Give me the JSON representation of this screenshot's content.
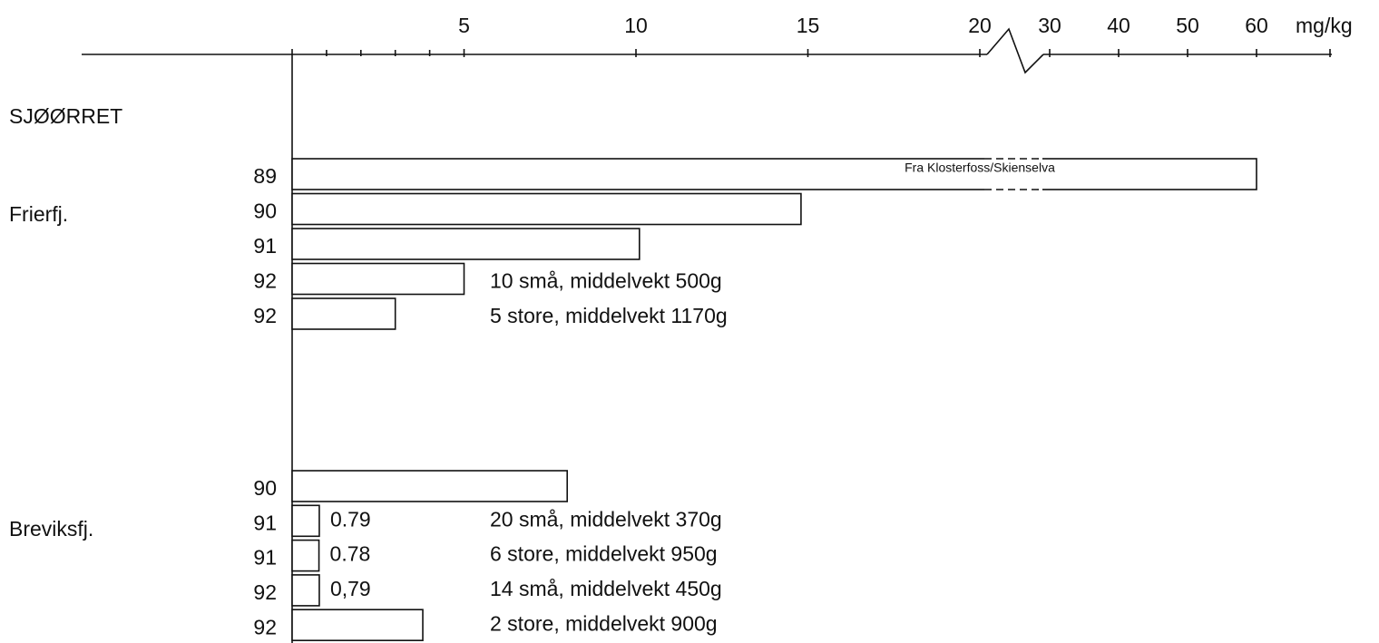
{
  "chart_data": {
    "type": "bar",
    "orientation": "horizontal",
    "title": "SJØØRRET",
    "unit": "mg/kg",
    "xlim": [
      0,
      60
    ],
    "xbreak": [
      20,
      30
    ],
    "xticks": [
      5,
      10,
      15,
      20,
      30,
      40,
      50,
      60
    ],
    "xminor_ticks": [
      1,
      2,
      3,
      4
    ],
    "color": "#ffffff",
    "groups": [
      {
        "name": "Frierfj.",
        "categories": [
          "89",
          "90",
          "91",
          "92",
          "92"
        ],
        "values": [
          60,
          14.8,
          10.1,
          5.0,
          3.0
        ],
        "value_labels": [
          null,
          null,
          null,
          null,
          null
        ],
        "notes": [
          "Fra Klosterfoss/Skienselva",
          null,
          null,
          "10 små, middelvekt 500g",
          "5 store, middelvekt 1170g"
        ]
      },
      {
        "name": "Breviksfj.",
        "categories": [
          "90",
          "91",
          "91",
          "92",
          "92"
        ],
        "values": [
          8.0,
          0.79,
          0.78,
          0.79,
          3.8
        ],
        "value_labels": [
          null,
          "0.79",
          "0.78",
          "0,79",
          null
        ],
        "notes": [
          null,
          "20 små, middelvekt 370g",
          "6 store, middelvekt 950g",
          "14 små, middelvekt 450g",
          "2 store, middelvekt 900g"
        ]
      }
    ]
  }
}
